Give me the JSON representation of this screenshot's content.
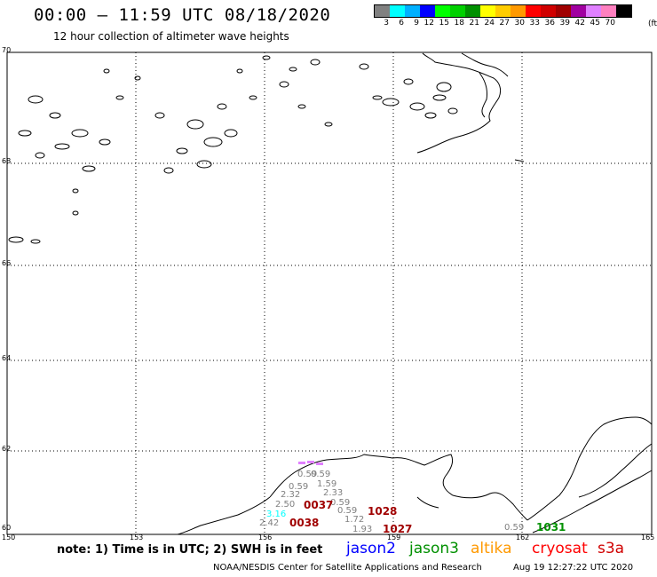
{
  "header": {
    "title": "00:00 – 11:59 UTC 08/18/2020",
    "subtitle": "12 hour collection of altimeter wave heights"
  },
  "legend": {
    "colors": [
      "#808080",
      "#00ffff",
      "#00b0ff",
      "#0000ff",
      "#00ff00",
      "#00d000",
      "#009000",
      "#ffff00",
      "#ffcc00",
      "#ff9900",
      "#ff0000",
      "#d00000",
      "#a00000",
      "#a000a0",
      "#e080ff",
      "#ff80c0",
      "#000000"
    ],
    "labels": [
      "3",
      "6",
      "9",
      "12",
      "15",
      "18",
      "21",
      "24",
      "27",
      "30",
      "33",
      "36",
      "39",
      "42",
      "45",
      "70"
    ],
    "unit": "(ft)"
  },
  "axes": {
    "lat_labels": [
      "70",
      "68",
      "66",
      "64",
      "62",
      "60"
    ],
    "lon_labels": [
      "150",
      "153",
      "156",
      "159",
      "162",
      "165"
    ]
  },
  "observations": [
    {
      "text": "0.59",
      "color": "#808080"
    },
    {
      "text": "0.59",
      "color": "#808080"
    },
    {
      "text": "0.59",
      "color": "#808080"
    },
    {
      "text": "1.59",
      "color": "#808080"
    },
    {
      "text": "2.32",
      "color": "#808080"
    },
    {
      "text": "2.33",
      "color": "#808080"
    },
    {
      "text": "2.50",
      "color": "#808080"
    },
    {
      "text": "0.59",
      "color": "#808080"
    },
    {
      "text": "0.59",
      "color": "#808080"
    },
    {
      "text": "3.16",
      "color": "#00ffff"
    },
    {
      "text": "1.72",
      "color": "#808080"
    },
    {
      "text": "2.42",
      "color": "#808080"
    },
    {
      "text": "1.93",
      "color": "#808080"
    },
    {
      "text": "0.59",
      "color": "#808080"
    }
  ],
  "passes": [
    {
      "text": "0037",
      "color": "#a00000"
    },
    {
      "text": "0038",
      "color": "#a00000"
    },
    {
      "text": "1028",
      "color": "#a00000"
    },
    {
      "text": "1027",
      "color": "#a00000"
    },
    {
      "text": "1031",
      "color": "#009000"
    }
  ],
  "footer": {
    "note": "note: 1) Time is in UTC; 2) SWH is in feet",
    "satellites": [
      {
        "name": "jason2",
        "color": "#0000ff"
      },
      {
        "name": "jason3",
        "color": "#009000"
      },
      {
        "name": "altika",
        "color": "#ff9900"
      },
      {
        "name": "cryosat",
        "color": "#ff0000"
      },
      {
        "name": "s3a",
        "color": "#d00000"
      }
    ],
    "credit": "NOAA/NESDIS Center for Satellite Applications and Research",
    "timestamp": "Aug 19 12:27:22 UTC 2020"
  }
}
